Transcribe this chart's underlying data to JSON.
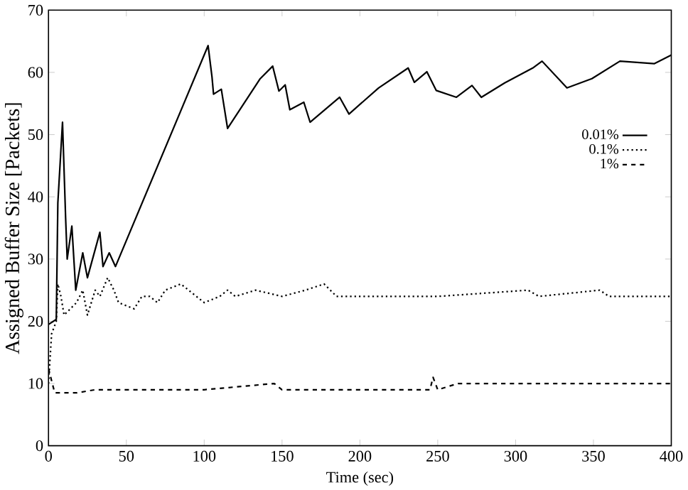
{
  "chart_data": {
    "type": "line",
    "xlabel": "Time (sec)",
    "ylabel": "Assigned Buffer Size [Packets]",
    "xlim": [
      0,
      400
    ],
    "ylim": [
      0,
      70
    ],
    "xticks": [
      0,
      50,
      100,
      150,
      200,
      250,
      300,
      350,
      400
    ],
    "yticks": [
      0,
      10,
      20,
      30,
      40,
      50,
      60,
      70
    ],
    "grid": false,
    "legend": "right",
    "marker": "none",
    "series": [
      {
        "name": "0.01%",
        "color": "#000000",
        "line_style": "solid",
        "x": [
          0,
          5,
          6,
          9,
          11,
          12,
          15,
          17.5,
          22,
          25,
          33,
          35,
          39,
          43,
          102.5,
          105,
          106,
          111,
          115,
          136,
          144,
          148,
          152,
          155,
          164,
          168,
          187,
          193,
          212,
          231,
          235,
          243,
          249,
          262,
          272,
          278,
          293,
          311,
          317,
          333,
          349,
          367,
          389,
          400
        ],
        "values": [
          19.5,
          20.3,
          39,
          52,
          36.6,
          30,
          35.3,
          25,
          31,
          27,
          34.3,
          28.8,
          31,
          28.8,
          64.3,
          59.3,
          56.5,
          57.3,
          51,
          59,
          61,
          57,
          58,
          54,
          55.2,
          52,
          56,
          53.3,
          57.5,
          60.7,
          58.4,
          60.1,
          57.1,
          56,
          57.9,
          56,
          58.3,
          60.7,
          61.8,
          57.5,
          59,
          61.8,
          61.4,
          62.8
        ]
      },
      {
        "name": "0.1%",
        "color": "#000000",
        "line_style": "dotted",
        "x": [
          0,
          2,
          5,
          6,
          8,
          10,
          14,
          18,
          22,
          25,
          30,
          33,
          38,
          42,
          45,
          55,
          60,
          65,
          70,
          75,
          85,
          95,
          100,
          110,
          115,
          120,
          133,
          150,
          165,
          177,
          185,
          200,
          250,
          308,
          315,
          354,
          360,
          400
        ],
        "values": [
          10,
          18,
          20,
          26,
          24,
          21,
          22,
          23,
          25,
          21,
          25,
          24,
          27,
          25,
          23,
          22,
          24,
          24,
          23,
          25,
          26,
          24,
          23,
          24,
          25,
          24,
          25,
          24,
          25,
          26,
          24,
          24,
          24,
          25,
          24,
          25,
          24,
          24
        ]
      },
      {
        "name": "1%",
        "color": "#000000",
        "line_style": "dashed",
        "x": [
          0,
          4,
          18,
          30,
          60,
          100,
          145,
          150,
          200,
          245,
          247,
          250,
          263,
          400
        ],
        "values": [
          12.4,
          8.5,
          8.5,
          9,
          9,
          9,
          10,
          9,
          9,
          9,
          11,
          9,
          10,
          10
        ]
      }
    ]
  }
}
